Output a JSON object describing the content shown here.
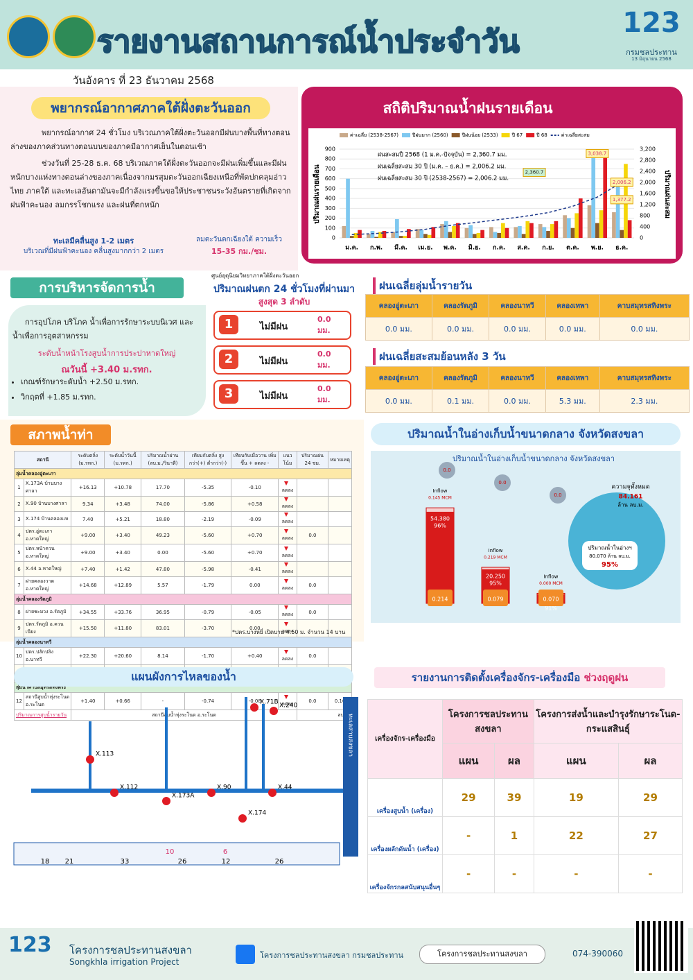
{
  "header": {
    "title": "รายงานสถานการณ์น้ำประจำวัน",
    "date": "วันอังคาร ที่ 23 ธันวาคม 2568",
    "logo_number": "123",
    "logo_text": "กรมชลประทาน",
    "logo_date": "13 มิถุนายน 2568"
  },
  "weather": {
    "title": "พยากรณ์อากาศภาคใต้ฝั่งตะวันออก",
    "p1": "พยากรณ์อากาศ 24 ชั่วโมง บริเวณภาคใต้ฝั่งตะวันออกมีฝนบางพื้นที่ทางตอนล่างของภาคส่วนทางตอนบนของภาคมีอากาศเย็นในตอนเช้า",
    "p2": "ช่วงวันที่ 25-28 ธ.ค. 68 บริเวณภาคใต้ฝั่งตะวันออกจะมีฝนเพิ่มขึ้นและมีฝนหนักบางแห่งทางตอนล่างของภาคเนื่องจากมรสุมตะวันออกเฉียงเหนือที่พัดปกคลุมอ่าวไทย ภาคใต้ และทะเลอันดามันจะมีกำลังแรงขึ้นขอให้ประชาชนระวังอันตรายที่เกิดจากฝนฟ้าคะนอง ลมกรรโชกแรง และฝนที่ตกหนัก",
    "wave": "ทะเลมีคลื่นสูง 1-2 เมตร",
    "wave_note": "บริเวณที่มีฝนฟ้าคะนอง คลื่นสูงมากกว่า 2 เมตร",
    "wind": "ลมตะวันตกเฉียงใต้ ความเร็ว",
    "wind_speed": "15-35 กม./ชม."
  },
  "chart_data": {
    "type": "bar",
    "title": "สถิติปริมาณน้ำฝนรายเดือน",
    "y_label": "ปริมาณฝนรายเดือน",
    "y2_label": "ปริมาณฝนสะสม",
    "categories": [
      "ม.ค.",
      "ก.พ.",
      "มี.ค.",
      "เม.ย.",
      "พ.ค.",
      "มิ.ย.",
      "ก.ค.",
      "ส.ค.",
      "ก.ย.",
      "ต.ค.",
      "พ.ย.",
      "ธ.ค."
    ],
    "series": [
      {
        "name": "ค่าเฉลี่ย (2538-2567)",
        "color": "#c9a98a",
        "values": [
          120,
          40,
          60,
          90,
          140,
          100,
          110,
          110,
          140,
          230,
          330,
          260
        ]
      },
      {
        "name": "ปีฝนมาก (2560)",
        "color": "#7ec8f0",
        "values": [
          600,
          70,
          190,
          80,
          170,
          130,
          60,
          120,
          110,
          200,
          850,
          570
        ]
      },
      {
        "name": "ปีฝนน้อย (2533)",
        "color": "#8b5a2b",
        "values": [
          20,
          10,
          20,
          40,
          60,
          40,
          50,
          40,
          70,
          100,
          150,
          80
        ]
      },
      {
        "name": "ปี 67",
        "color": "#f5d60a",
        "values": [
          50,
          60,
          20,
          30,
          120,
          50,
          150,
          170,
          140,
          250,
          280,
          750
        ]
      },
      {
        "name": "ปี 68",
        "color": "#e01b24",
        "values": [
          80,
          70,
          90,
          110,
          150,
          80,
          100,
          150,
          170,
          400,
          900,
          180
        ]
      },
      {
        "name": "ค่าเฉลี่ยสะสม",
        "color": "#1f3b8c",
        "type": "line",
        "axis": "y2",
        "dash": true,
        "values": [
          120,
          160,
          220,
          310,
          450,
          550,
          660,
          770,
          910,
          1140,
          1470,
          2006.2
        ]
      }
    ],
    "ylim": [
      0,
      900
    ],
    "yticks": [
      0,
      100,
      200,
      300,
      400,
      500,
      600,
      700,
      800,
      900
    ],
    "y2lim": [
      0,
      3200
    ],
    "y2ticks": [
      0,
      400,
      800,
      {
        "value": 1200,
        "label": "1,200"
      },
      {
        "value": 1600,
        "label": "1,600"
      },
      {
        "value": 2000,
        "label": "2,000"
      },
      {
        "value": 2400,
        "label": "2,400"
      },
      {
        "value": 2800,
        "label": "2,800"
      },
      {
        "value": 3200,
        "label": "3,200"
      }
    ],
    "annotations": [
      "ฝนสะสมปี 2568 (1 ม.ค.-ปัจจุบัน) = 2,360.7 มม.",
      "ฝนเฉลี่ยสะสม 30 ปี (ม.ค. – ธ.ค.) = 2,006.2 มม.",
      "ฝนเฉลี่ยสะสม 30 ปี (2538-2567) = 2,006.2 มม."
    ],
    "callouts": [
      {
        "value": 3038.7,
        "label": "3,038.7",
        "month": 10
      },
      {
        "value": 2006.2,
        "label": "2,006.2",
        "month": 11
      },
      {
        "value": 1377.2,
        "label": "1,377.2",
        "month": 11
      },
      {
        "value": 2360.7,
        "label": "2,360.7",
        "month": 8
      }
    ]
  },
  "management": {
    "title": "การบริหารจัดการน้ำ",
    "text": "การอุปโภค บริโภค น้ำเพื่อการรักษาระบบนิเวศ และน้ำเพื่อการอุตสาหกรรม",
    "level_label": "ระดับน้ำหน้าโรงสูบน้ำการประปาหาดใหญ่",
    "level_today": "ณวันนี้ +3.40 ม.รทก.",
    "bullets": [
      "เกณฑ์รักษาระดับน้ำ +2.50 ม.รทก.",
      "วิกฤตที่ +1.85 ม.รทก."
    ]
  },
  "rain24": {
    "source": "ศูนย์อุตุนิยมวิทยาภาคใต้ฝั่งตะวันออก",
    "title": "ปริมาณฝนตก 24 ชั่วโมงที่ผ่านมา",
    "subtitle": "สูงสุด 3 ลำดับ",
    "items": [
      {
        "rank": "1",
        "place": "ไม่มีฝน",
        "amount": "0.0 มม."
      },
      {
        "rank": "2",
        "place": "ไม่มีฝน",
        "amount": "0.0 มม."
      },
      {
        "rank": "3",
        "place": "ไม่มีฝน",
        "amount": "0.0 มม."
      }
    ]
  },
  "basin_daily": {
    "title": "ฝนเฉลี่ยลุ่มน้ำรายวัน",
    "headers": [
      "คลองอู่ตะเภา",
      "คลองรัตภูมิ",
      "คลองนาทวี",
      "คลองเทพา",
      "คาบสมุทรสทิงพระ"
    ],
    "values": [
      "0.0 มม.",
      "0.0 มม.",
      "0.0 มม.",
      "0.0 มม.",
      "0.0 มม."
    ]
  },
  "basin_3day": {
    "title": "ฝนเฉลี่ยสะสมย้อนหลัง 3 วัน",
    "headers": [
      "คลองอู่ตะเภา",
      "คลองรัตภูมิ",
      "คลองนาทวี",
      "คลองเทพา",
      "คาบสมุทรสทิงพระ"
    ],
    "values": [
      "0.0 มม.",
      "0.1 มม.",
      "0.0 มม.",
      "5.3 มม.",
      "2.3 มม."
    ]
  },
  "water_level": {
    "title": "สภาพน้ำท่า",
    "headers": [
      "สถานี",
      "ระดับตลิ่ง (ม.รทก.)",
      "ระดับน้ำวันนี้ (ม.รทก.)",
      "ปริมาณน้ำผ่าน (ลบ.ม./วินาที)",
      "เทียบกับตลิ่ง สูงกว่า(+) ต่ำกว่า(-)",
      "เทียบกับเมื่อวาน เพิ่มขึ้น + ลดลง -",
      "แนวโน้ม",
      "ปริมาณฝน 24 ชม.",
      "หมายเหตุ"
    ],
    "sections": [
      {
        "name": "ลุ่มน้ำคลองอู่ตะเภา",
        "rows": [
          {
            "no": "1",
            "station": "X.173A บ้านบางศาลา",
            "bank": "+16.13",
            "level": "+10.78",
            "flow": "17.70",
            "vs_bank": "-5.35",
            "vs_yesterday": "-0.10",
            "trend": "ลดลง"
          },
          {
            "no": "2",
            "station": "X.90 บ้านบางศาลา",
            "bank": "9.34",
            "level": "+3.48",
            "flow": "74.00",
            "vs_bank": "-5.86",
            "vs_yesterday": "+0.58",
            "trend": "ลดลง"
          },
          {
            "no": "3",
            "station": "X.174 บ้านคลองแห",
            "bank": "7.40",
            "level": "+5.21",
            "flow": "18.80",
            "vs_bank": "-2.19",
            "vs_yesterday": "-0.09",
            "trend": "ลดลง"
          },
          {
            "no": "4",
            "station": "ปตร.อู่ตะเภา อ.หาดใหญ่",
            "bank": "+9.00",
            "level": "+3.40",
            "flow": "49.23",
            "vs_bank": "-5.60",
            "vs_yesterday": "+0.70",
            "trend": "ลดลง",
            "rain": "0.0"
          },
          {
            "no": "5",
            "station": "ปตร.หน้าควน อ.หาดใหญ่",
            "bank": "+9.00",
            "level": "+3.40",
            "flow": "0.00",
            "vs_bank": "-5.60",
            "vs_yesterday": "+0.70",
            "trend": "ลดลง"
          },
          {
            "no": "6",
            "station": "X.44 อ.หาดใหญ่",
            "bank": "+7.40",
            "level": "+1.42",
            "flow": "47.80",
            "vs_bank": "-5.98",
            "vs_yesterday": "-0.41",
            "trend": "ลดลง"
          },
          {
            "no": "7",
            "station": "ฝายคลองวาด อ.หาดใหญ่",
            "bank": "+14.68",
            "level": "+12.89",
            "flow": "5.57",
            "vs_bank": "-1.79",
            "vs_yesterday": "0.00",
            "trend": "ลดลง",
            "rain": "0.0"
          }
        ]
      },
      {
        "name": "ลุ่มน้ำคลองรัตภูมิ",
        "rows": [
          {
            "no": "8",
            "station": "ฝายชะมวง อ.รัตภูมิ",
            "bank": "+34.55",
            "level": "+33.76",
            "flow": "36.95",
            "vs_bank": "-0.79",
            "vs_yesterday": "-0.05",
            "trend": "ลดลง",
            "rain": "0.0"
          },
          {
            "no": "9",
            "station": "ปตร.รัตภูมิ อ.ควนเนียง",
            "bank": "+15.50",
            "level": "+11.80",
            "flow": "83.01",
            "vs_bank": "-3.70",
            "vs_yesterday": "0.00",
            "trend": "ลดลง"
          }
        ]
      },
      {
        "name": "ลุ่มน้ำคลองนาทวี",
        "rows": [
          {
            "no": "10",
            "station": "ปตร.ปลักปลิง อ.นาทวี",
            "bank": "+22.30",
            "level": "+20.60",
            "flow": "8.14",
            "vs_bank": "-1.70",
            "vs_yesterday": "+0.40",
            "trend": "ลดลง",
            "rain": "0.0"
          },
          {
            "no": "11",
            "station": "ปตร.คลองระบะ อ.จะนะ",
            "bank": "+7.50",
            "level": "+3.90",
            "flow": "102.40",
            "vs_bank": "-3.60",
            "vs_yesterday": "-0.30",
            "trend": "ลดลง",
            "rain": "0.0"
          }
        ]
      },
      {
        "name": "ลุ่มน้ำคาบสมุทรสทิงพระ",
        "rows": [
          {
            "no": "12",
            "station": "สถานีสูบน้ำทุ่งระโนด อ.ระโนด",
            "bank": "+1.40",
            "level": "+0.66",
            "flow": "-",
            "vs_bank": "-0.74",
            "vs_yesterday": "-0.08",
            "trend": "ลดลง",
            "rain": "0.0",
            "note": "0.10"
          }
        ]
      }
    ],
    "pump_label": "ปริมาณการสูบน้ำรายวัน",
    "pump_station": "สถานีสูบน้ำทุ่งระโนด อ.ระโนด",
    "pump_unit": "ลบ.ม.",
    "footnote": "*ปตร.บางหยี่ เปิดบาน 4.50 ม. จำนวน 14 บาน"
  },
  "reservoir": {
    "title": "ปริมาณน้ำในอ่างเก็บน้ำขนาดกลาง จังหวัดสงขลา",
    "inner_title": "ปริมาณน้ำในอ่างเก็บน้ำขนาดกลาง จังหวัดสงขลา",
    "ylim": [
      0,
      70
    ],
    "items": [
      {
        "capacity": 56.741,
        "current": 54.38,
        "current_label": "54.380",
        "percent": "96%",
        "inflow": "0.145 MCM",
        "outflow": "0.214",
        "rain": "0.0"
      },
      {
        "capacity": 21.42,
        "current": 20.25,
        "current_label": "20.250",
        "percent": "95%",
        "inflow": "0.219 MCM",
        "outflow": "0.079",
        "rain": "0.0"
      },
      {
        "capacity": 6,
        "current": 5.44,
        "current_label": "5.440",
        "percent": "91%",
        "inflow": "0.000 MCM",
        "outflow": "0.070",
        "rain": "0.0"
      }
    ],
    "inflow_label": "Inflow",
    "total_label": "ความจุทั้งหมด",
    "total": "84.161",
    "total_unit": "ล้าน ลบ.ม.",
    "stored_label": "ปริมาณน้ำในอ่างฯ",
    "stored": "80.070 ล้าน ลบ.ม.",
    "stored_percent": "95%"
  },
  "flow": {
    "title": "แผนผังการไหลของน้ำ",
    "lake": "ทะเลสาบสงขลา",
    "stations": [
      "X.113",
      "X.112",
      "X.173A",
      "X.90",
      "X.174",
      "X.44",
      "X.71B",
      "X.240"
    ],
    "distances": [
      "18",
      "21",
      "33",
      "26",
      "12",
      "26"
    ],
    "times": [
      "10",
      "6"
    ]
  },
  "machinery": {
    "title": "รายงานการติดตั้งเครื่องจักร-เครื่องมือ",
    "title_highlight": "ช่วงฤดูฝน",
    "col0": "เครื่องจักร-เครื่องมือ",
    "groups": [
      "โครงการชลประทานสงขลา",
      "โครงการส่งน้ำและบำรุงรักษาระโนด-กระแสสินธุ์"
    ],
    "sub": [
      "แผน",
      "ผล",
      "แผน",
      "ผล"
    ],
    "rows": [
      {
        "name": "เครื่องสูบน้ำ (เครื่อง)",
        "values": [
          29,
          39,
          19,
          29
        ]
      },
      {
        "name": "เครื่องผลักดันน้ำ (เครื่อง)",
        "values": [
          "-",
          1,
          22,
          27
        ]
      },
      {
        "name": "เครื่องจักรกลสนับสนุนอื่นๆ",
        "values": [
          "-",
          "-",
          "-",
          "-"
        ]
      }
    ]
  },
  "footer": {
    "org_th": "โครงการชลประทานสงขลา",
    "org_en": "Songkhla irrigation Project",
    "facebook": "โครงการชลประทานสงขลา กรมชลประทาน",
    "web": "โครงการชลประทานสงขลา",
    "phone": "074-390060"
  }
}
